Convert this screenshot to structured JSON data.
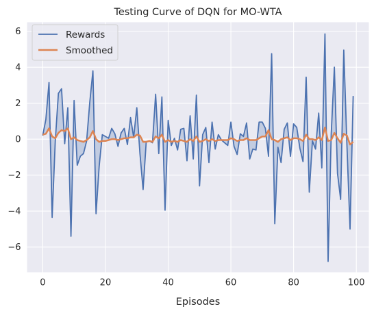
{
  "chart_data": {
    "type": "line",
    "title": "Testing Curve of DQN for MO-WTA",
    "xlabel": "Episodes",
    "ylabel": "",
    "xlim": [
      -5,
      104
    ],
    "ylim": [
      -7.4,
      6.5
    ],
    "xticks": [
      0,
      20,
      40,
      60,
      80,
      100
    ],
    "yticks": [
      -6,
      -4,
      -2,
      0,
      2,
      4,
      6
    ],
    "xtick_labels": [
      "0",
      "20",
      "40",
      "60",
      "80",
      "100"
    ],
    "ytick_labels": [
      "−6",
      "−4",
      "−2",
      "0",
      "2",
      "4",
      "6"
    ],
    "grid": true,
    "legend_position": "top-left",
    "fill_between_series": true,
    "colors": {
      "rewards": "#4c72b0",
      "smoothed": "#dd8452",
      "fill": "#4c72b0",
      "background": "#eaeaf2",
      "grid": "#ffffff"
    },
    "series": [
      {
        "name": "Rewards",
        "x": [
          0,
          1,
          2,
          3,
          4,
          5,
          6,
          7,
          8,
          9,
          10,
          11,
          12,
          13,
          14,
          15,
          16,
          17,
          18,
          19,
          20,
          21,
          22,
          23,
          24,
          25,
          26,
          27,
          28,
          29,
          30,
          31,
          32,
          33,
          34,
          35,
          36,
          37,
          38,
          39,
          40,
          41,
          42,
          43,
          44,
          45,
          46,
          47,
          48,
          49,
          50,
          51,
          52,
          53,
          54,
          55,
          56,
          57,
          58,
          59,
          60,
          61,
          62,
          63,
          64,
          65,
          66,
          67,
          68,
          69,
          70,
          71,
          72,
          73,
          74,
          75,
          76,
          77,
          78,
          79,
          80,
          81,
          82,
          83,
          84,
          85,
          86,
          87,
          88,
          89,
          90,
          91,
          92,
          93,
          94,
          95,
          96,
          97,
          98,
          99
        ],
        "values": [
          0.2,
          1.1,
          3.15,
          -4.35,
          -0.1,
          2.55,
          2.8,
          -0.25,
          1.75,
          -5.4,
          2.15,
          -1.45,
          -0.95,
          -0.8,
          -0.1,
          2.05,
          3.8,
          -4.15,
          -1.5,
          0.25,
          0.15,
          0.05,
          0.6,
          0.3,
          -0.4,
          0.35,
          0.6,
          -0.3,
          1.2,
          0.1,
          1.75,
          -0.8,
          -2.8,
          -0.15,
          -0.1,
          -0.2,
          2.5,
          -0.8,
          2.35,
          -3.95,
          1.05,
          -0.35,
          0.05,
          -0.6,
          0.55,
          0.6,
          -1.2,
          1.3,
          -1.1,
          2.45,
          -2.6,
          0.25,
          0.65,
          -1.3,
          0.95,
          -0.55,
          0.25,
          -0.05,
          -0.2,
          -0.35,
          0.95,
          -0.4,
          -0.85,
          0.3,
          0.15,
          0.9,
          -1.1,
          -0.55,
          -0.6,
          0.95,
          0.95,
          0.6,
          -0.95,
          4.75,
          -4.7,
          -0.45,
          -1.3,
          0.55,
          0.9,
          -0.95,
          0.85,
          0.65,
          -0.5,
          -1.25,
          3.45,
          -2.95,
          -0.1,
          -0.55,
          1.45,
          -1.6,
          5.85,
          -6.8,
          0.3,
          4.0,
          -1.9,
          -3.35,
          4.95,
          -0.3,
          -5.0,
          2.4
        ]
      },
      {
        "name": "Smoothed",
        "x": [
          0,
          1,
          2,
          3,
          4,
          5,
          6,
          7,
          8,
          9,
          10,
          11,
          12,
          13,
          14,
          15,
          16,
          17,
          18,
          19,
          20,
          21,
          22,
          23,
          24,
          25,
          26,
          27,
          28,
          29,
          30,
          31,
          32,
          33,
          34,
          35,
          36,
          37,
          38,
          39,
          40,
          41,
          42,
          43,
          44,
          45,
          46,
          47,
          48,
          49,
          50,
          51,
          52,
          53,
          54,
          55,
          56,
          57,
          58,
          59,
          60,
          61,
          62,
          63,
          64,
          65,
          66,
          67,
          68,
          69,
          70,
          71,
          72,
          73,
          74,
          75,
          76,
          77,
          78,
          79,
          80,
          81,
          82,
          83,
          84,
          85,
          86,
          87,
          88,
          89,
          90,
          91,
          92,
          93,
          94,
          95,
          96,
          97,
          98,
          99
        ],
        "values": [
          0.25,
          0.3,
          0.6,
          0.15,
          0.05,
          0.35,
          0.5,
          0.45,
          0.6,
          0.0,
          0.1,
          -0.05,
          -0.1,
          -0.15,
          -0.05,
          0.1,
          0.45,
          0.0,
          -0.15,
          -0.1,
          -0.1,
          -0.05,
          0.0,
          0.0,
          -0.05,
          0.0,
          0.05,
          0.05,
          0.1,
          0.1,
          0.25,
          0.2,
          -0.15,
          -0.15,
          -0.1,
          -0.15,
          0.15,
          0.05,
          0.25,
          -0.15,
          -0.05,
          -0.15,
          -0.1,
          -0.15,
          -0.05,
          -0.1,
          -0.15,
          0.0,
          -0.1,
          0.15,
          -0.15,
          -0.1,
          0.0,
          -0.1,
          0.0,
          -0.1,
          -0.05,
          -0.05,
          -0.05,
          -0.05,
          0.05,
          0.0,
          -0.1,
          -0.05,
          -0.05,
          0.05,
          -0.05,
          -0.05,
          -0.05,
          0.05,
          0.15,
          0.15,
          0.5,
          0.0,
          -0.05,
          -0.15,
          0.0,
          0.05,
          0.1,
          -0.05,
          0.05,
          0.05,
          0.0,
          -0.1,
          0.25,
          0.0,
          0.0,
          -0.05,
          0.1,
          -0.05,
          0.65,
          -0.1,
          -0.05,
          0.35,
          0.05,
          -0.2,
          0.3,
          0.2,
          -0.3,
          -0.15
        ]
      }
    ]
  }
}
